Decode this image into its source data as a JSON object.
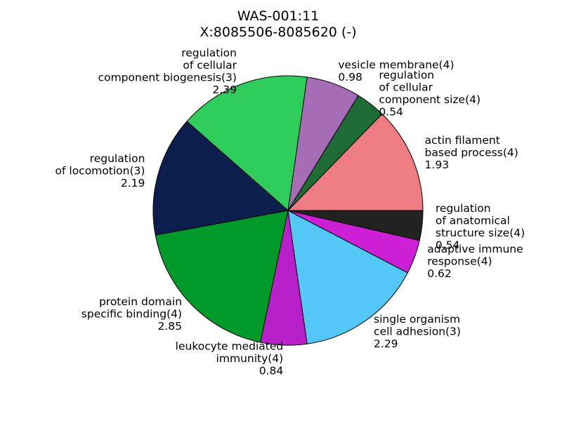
{
  "chart_data": {
    "type": "pie",
    "title_line1": "WAS-001:11",
    "title_line2": "X:8085506-8085620 (-)",
    "start_angle_deg": 0,
    "direction": "counterclockwise",
    "slices": [
      {
        "label_lines": [
          "actin filament",
          "based process(4)"
        ],
        "value": 1.93,
        "value_text": "1.93",
        "color": "#ed7d83"
      },
      {
        "label_lines": [
          "regulation",
          "of cellular",
          "component size(4)"
        ],
        "value": 0.54,
        "value_text": "0.54",
        "color": "#1f6b35"
      },
      {
        "label_lines": [
          "vesicle membrane(4)"
        ],
        "value": 0.98,
        "value_text": "0.98",
        "color": "#a56db5"
      },
      {
        "label_lines": [
          "regulation",
          "of cellular",
          "component biogenesis(3)"
        ],
        "value": 2.39,
        "value_text": "2.39",
        "color": "#2ecc5b"
      },
      {
        "label_lines": [
          "regulation",
          "of locomotion(3)"
        ],
        "value": 2.19,
        "value_text": "2.19",
        "color": "#0b1e4d"
      },
      {
        "label_lines": [
          "protein domain",
          "specific binding(4)"
        ],
        "value": 2.85,
        "value_text": "2.85",
        "color": "#009a2a"
      },
      {
        "label_lines": [
          "leukocyte mediated",
          "immunity(4)"
        ],
        "value": 0.84,
        "value_text": "0.84",
        "color": "#b821c9"
      },
      {
        "label_lines": [
          "single organism",
          "cell adhesion(3)"
        ],
        "value": 2.29,
        "value_text": "2.29",
        "color": "#53c7f5"
      },
      {
        "label_lines": [
          "adaptive immune",
          "response(4)"
        ],
        "value": 0.62,
        "value_text": "0.62",
        "color": "#cc1fd6"
      },
      {
        "label_lines": [
          "regulation",
          "of anatomical",
          "structure size(4)"
        ],
        "value": 0.54,
        "value_text": "0.54",
        "color": "#222222"
      }
    ]
  }
}
